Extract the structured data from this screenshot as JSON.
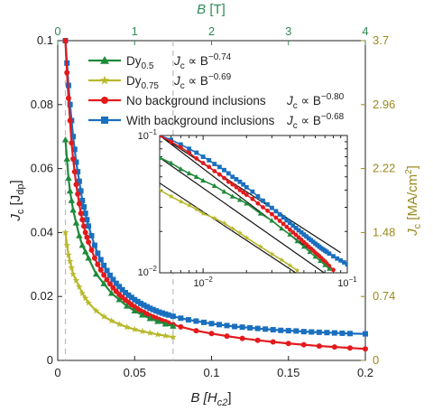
{
  "chart_data": [
    {
      "type": "line",
      "title": "",
      "xlabel": "B [H",
      "xlabel_sub": "c2",
      "xlabel_close": "]",
      "ylabel": "J",
      "ylabel_sub": "c",
      "ylabel_mid": " [J",
      "ylabel_sub2": "dp",
      "ylabel_close": "]",
      "xlim": [
        0,
        0.2
      ],
      "ylim": [
        0,
        0.1
      ],
      "xticks": [
        "0",
        "0.05",
        "0.1",
        "0.15",
        "0.2"
      ],
      "yticks": [
        "0",
        "0.02",
        "0.04",
        "0.06",
        "0.08",
        "0.1"
      ],
      "top_axis": {
        "label": "B",
        "unit": " [T]",
        "color": "#2e8b57",
        "lim": [
          0,
          4
        ],
        "ticks": [
          "0",
          "1",
          "2",
          "3",
          "4"
        ]
      },
      "right_axis": {
        "label": "J",
        "label_sub": "c",
        "unit": " [MA/cm",
        "unit_sup": "2",
        "unit_close": "]",
        "color": "#9a8a1e",
        "lim": [
          0,
          3.7
        ],
        "ticks": [
          "0",
          "0.74",
          "1.48",
          "2.22",
          "2.96",
          "3.7"
        ]
      },
      "reference_lines_x": [
        0.005,
        0.075
      ],
      "legend": {
        "placement": "top-right",
        "entries": [
          {
            "name": "Dy",
            "sub": "0.5",
            "law": "J",
            "law_sub": "c",
            "law_mid": " ∝ B",
            "exponent": "−0.74"
          },
          {
            "name": "Dy",
            "sub": "0.75",
            "law": "J",
            "law_sub": "c",
            "law_mid": " ∝ B",
            "exponent": "−0.69"
          },
          {
            "name": "No background inclusions",
            "sub": "",
            "law": "J",
            "law_sub": "c",
            "law_mid": " ∝ B",
            "exponent": "−0.80"
          },
          {
            "name": "With background inclusions",
            "sub": "",
            "law": "J",
            "law_sub": "c",
            "law_mid": " ∝ B",
            "exponent": "−0.68"
          }
        ]
      },
      "series": [
        {
          "name": "Dy0.5",
          "color": "#1f8a3a",
          "marker": "triangle",
          "x": [
            0.005,
            0.006,
            0.007,
            0.008,
            0.009,
            0.01,
            0.012,
            0.014,
            0.016,
            0.018,
            0.02,
            0.025,
            0.03,
            0.035,
            0.04,
            0.045,
            0.05,
            0.055,
            0.06,
            0.065,
            0.07,
            0.075
          ],
          "y": [
            0.069,
            0.063,
            0.057,
            0.053,
            0.05,
            0.047,
            0.043,
            0.039,
            0.036,
            0.034,
            0.032,
            0.027,
            0.024,
            0.021,
            0.019,
            0.017,
            0.0155,
            0.0142,
            0.0131,
            0.0122,
            0.0114,
            0.0107
          ]
        },
        {
          "name": "Dy0.75",
          "color": "#b8b82a",
          "marker": "star",
          "x": [
            0.005,
            0.006,
            0.007,
            0.008,
            0.009,
            0.01,
            0.012,
            0.014,
            0.016,
            0.018,
            0.02,
            0.025,
            0.03,
            0.035,
            0.04,
            0.045,
            0.05,
            0.055,
            0.06,
            0.065,
            0.07,
            0.075
          ],
          "y": [
            0.04,
            0.036,
            0.033,
            0.031,
            0.029,
            0.027,
            0.025,
            0.023,
            0.021,
            0.0195,
            0.018,
            0.0155,
            0.0137,
            0.0124,
            0.0113,
            0.0104,
            0.0097,
            0.0091,
            0.0086,
            0.0081,
            0.0077,
            0.0073
          ]
        },
        {
          "name": "No background inclusions",
          "color": "#e31a1c",
          "marker": "circle",
          "x": [
            0.005,
            0.006,
            0.007,
            0.008,
            0.009,
            0.01,
            0.011,
            0.012,
            0.013,
            0.014,
            0.015,
            0.016,
            0.017,
            0.018,
            0.019,
            0.02,
            0.022,
            0.024,
            0.026,
            0.028,
            0.03,
            0.032,
            0.034,
            0.036,
            0.038,
            0.04,
            0.042,
            0.044,
            0.046,
            0.048,
            0.05,
            0.052,
            0.054,
            0.056,
            0.058,
            0.06,
            0.062,
            0.064,
            0.066,
            0.068,
            0.07,
            0.072,
            0.075,
            0.08,
            0.09,
            0.1,
            0.11,
            0.12,
            0.13,
            0.14,
            0.15,
            0.16,
            0.17,
            0.18,
            0.19,
            0.2
          ],
          "y": [
            0.1,
            0.09,
            0.082,
            0.075,
            0.068,
            0.063,
            0.059,
            0.055,
            0.052,
            0.049,
            0.046,
            0.044,
            0.042,
            0.04,
            0.0385,
            0.037,
            0.0345,
            0.032,
            0.03,
            0.0283,
            0.0267,
            0.0252,
            0.0239,
            0.0227,
            0.0216,
            0.0206,
            0.0197,
            0.0189,
            0.0181,
            0.0174,
            0.0167,
            0.0161,
            0.0155,
            0.015,
            0.0145,
            0.014,
            0.0136,
            0.0132,
            0.0128,
            0.0124,
            0.0121,
            0.0117,
            0.0112,
            0.0105,
            0.0093,
            0.0084,
            0.0076,
            0.0069,
            0.0063,
            0.0058,
            0.0053,
            0.0049,
            0.0045,
            0.0042,
            0.0039,
            0.0036
          ]
        },
        {
          "name": "With background inclusions",
          "color": "#1a6fbf",
          "marker": "square",
          "x": [
            0.005,
            0.006,
            0.007,
            0.008,
            0.009,
            0.01,
            0.011,
            0.012,
            0.013,
            0.014,
            0.015,
            0.016,
            0.017,
            0.018,
            0.019,
            0.02,
            0.022,
            0.024,
            0.026,
            0.028,
            0.03,
            0.032,
            0.034,
            0.036,
            0.038,
            0.04,
            0.042,
            0.044,
            0.046,
            0.048,
            0.05,
            0.052,
            0.054,
            0.056,
            0.058,
            0.06,
            0.062,
            0.064,
            0.066,
            0.068,
            0.07,
            0.072,
            0.075,
            0.08,
            0.085,
            0.09,
            0.095,
            0.1,
            0.105,
            0.11,
            0.115,
            0.12,
            0.125,
            0.13,
            0.135,
            0.14,
            0.145,
            0.15,
            0.155,
            0.16,
            0.165,
            0.17,
            0.175,
            0.18,
            0.185,
            0.19,
            0.2
          ],
          "y": [
            0.1,
            0.093,
            0.086,
            0.08,
            0.075,
            0.07,
            0.066,
            0.062,
            0.059,
            0.056,
            0.053,
            0.05,
            0.048,
            0.046,
            0.044,
            0.042,
            0.039,
            0.036,
            0.0335,
            0.0315,
            0.0297,
            0.0281,
            0.0266,
            0.0253,
            0.0241,
            0.0231,
            0.0221,
            0.0212,
            0.0204,
            0.0197,
            0.019,
            0.0184,
            0.0178,
            0.0173,
            0.0168,
            0.0163,
            0.0159,
            0.0155,
            0.0151,
            0.0148,
            0.0145,
            0.0142,
            0.0138,
            0.0132,
            0.0127,
            0.0123,
            0.0119,
            0.0115,
            0.0112,
            0.0109,
            0.0106,
            0.0104,
            0.0102,
            0.01,
            0.0098,
            0.0096,
            0.0094,
            0.0093,
            0.0092,
            0.009,
            0.0089,
            0.0088,
            0.0087,
            0.0086,
            0.0085,
            0.0084,
            0.0083
          ]
        }
      ]
    },
    {
      "type": "line",
      "title": "",
      "scale": "log-log",
      "xlim": [
        0.005,
        0.1
      ],
      "ylim": [
        0.01,
        0.1
      ],
      "xticks": [
        "10",
        "10"
      ],
      "xtick_exps": [
        "−2",
        "−1"
      ],
      "yticks": [
        "10",
        "10"
      ],
      "ytick_exps": [
        "−2",
        "−1"
      ],
      "fit_lines": [
        {
          "exponent": -0.8,
          "x": [
            0.005,
            0.075
          ],
          "y": [
            0.1,
            0.0115
          ]
        },
        {
          "exponent": -0.68,
          "x": [
            0.005,
            0.09
          ],
          "y": [
            0.1,
            0.014
          ]
        },
        {
          "exponent": -0.74,
          "x": [
            0.005,
            0.07
          ],
          "y": [
            0.069,
            0.0099
          ]
        },
        {
          "exponent": -0.69,
          "x": [
            0.005,
            0.075
          ],
          "y": [
            0.045,
            0.0069
          ]
        }
      ]
    }
  ]
}
